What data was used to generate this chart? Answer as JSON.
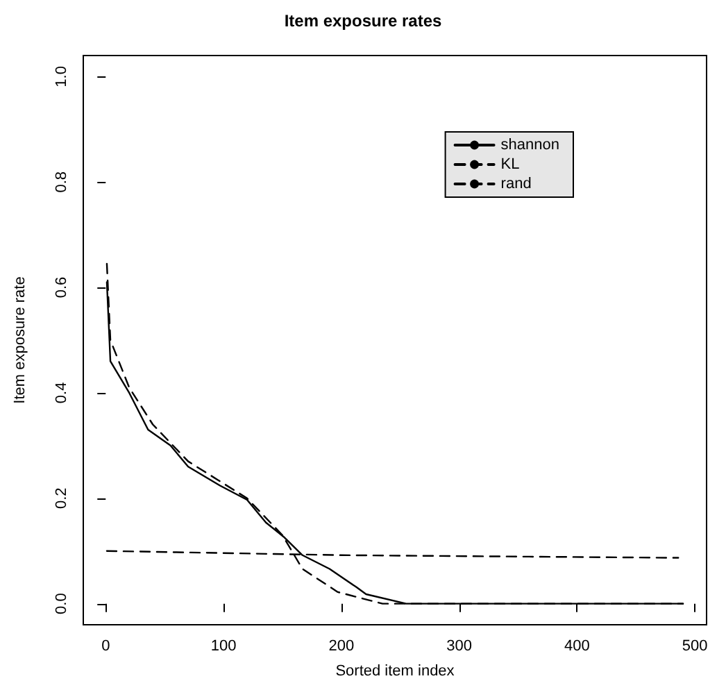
{
  "chart_data": {
    "type": "line",
    "title": "Item exposure rates",
    "xlabel": "Sorted item index",
    "ylabel": "Item exposure rate",
    "xlim": [
      -19,
      510
    ],
    "xticks": [
      0,
      100,
      200,
      300,
      400,
      500
    ],
    "ylim": [
      -0.04,
      1.04
    ],
    "yticks": [
      {
        "value": 0,
        "label": "0.0"
      },
      {
        "value": 0.2,
        "label": "0.2"
      },
      {
        "value": 0.4,
        "label": "0.4"
      },
      {
        "value": 0.6,
        "label": "0.6"
      },
      {
        "value": 0.8,
        "label": "0.8"
      },
      {
        "value": 1,
        "label": "1.0"
      }
    ],
    "grid": false,
    "legend": "top right",
    "marker": "none",
    "series": [
      {
        "name": "shannon",
        "color": "#000000",
        "line_style": "solid",
        "x": [
          1,
          4,
          20,
          36,
          55,
          70,
          97,
          120,
          136,
          151,
          167,
          190,
          213,
          221,
          255,
          490
        ],
        "values": [
          0.61,
          0.46,
          0.4,
          0.33,
          0.3,
          0.26,
          0.224,
          0.197,
          0.154,
          0.127,
          0.092,
          0.066,
          0.031,
          0.018,
          0,
          0
        ]
      },
      {
        "name": "KL",
        "color": "#000000",
        "line_style": "dashed",
        "x": [
          1,
          4,
          20,
          40,
          70,
          95,
          120,
          150,
          167,
          197,
          235,
          490
        ],
        "values": [
          0.645,
          0.5,
          0.41,
          0.34,
          0.27,
          0.235,
          0.2,
          0.13,
          0.066,
          0.022,
          0,
          0
        ]
      },
      {
        "name": "rand",
        "color": "#000000",
        "line_style": "dashed",
        "x": [
          1,
          200,
          486
        ],
        "values": [
          0.1,
          0.092,
          0.087
        ]
      }
    ]
  }
}
